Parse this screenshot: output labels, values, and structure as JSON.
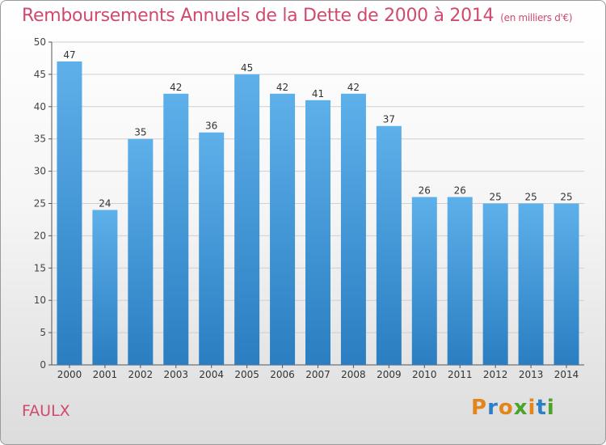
{
  "title": "Remboursements Annuels de la Dette de 2000 à 2014",
  "subtitle": "(en milliers d'€)",
  "commune": "FAULX",
  "logo": {
    "text": "Proxiti",
    "letters": [
      "P",
      "r",
      "o",
      "x",
      "i",
      "t",
      "i"
    ],
    "colors": [
      "#e2861c",
      "#2b7fc6",
      "#e2861c",
      "#4aa32a",
      "#e2861c",
      "#2b7fc6",
      "#4aa32a"
    ]
  },
  "colors": {
    "title": "#cf4a6d",
    "bar_top": "#5eb0ea",
    "bar_bottom": "#2a7ec1",
    "grid": "#cfcfcf"
  },
  "chart_data": {
    "type": "bar",
    "title": "Remboursements Annuels de la Dette de 2000 à 2014",
    "subtitle": "(en milliers d'€)",
    "categories": [
      "2000",
      "2001",
      "2002",
      "2003",
      "2004",
      "2005",
      "2006",
      "2007",
      "2008",
      "2009",
      "2010",
      "2011",
      "2012",
      "2013",
      "2014"
    ],
    "values": [
      47,
      24,
      35,
      42,
      36,
      45,
      42,
      41,
      42,
      37,
      26,
      26,
      25,
      25,
      25
    ],
    "ylim": [
      0,
      50
    ],
    "yticks": [
      0,
      5,
      10,
      15,
      20,
      25,
      30,
      35,
      40,
      45,
      50
    ],
    "grid": true,
    "data_labels": true
  }
}
